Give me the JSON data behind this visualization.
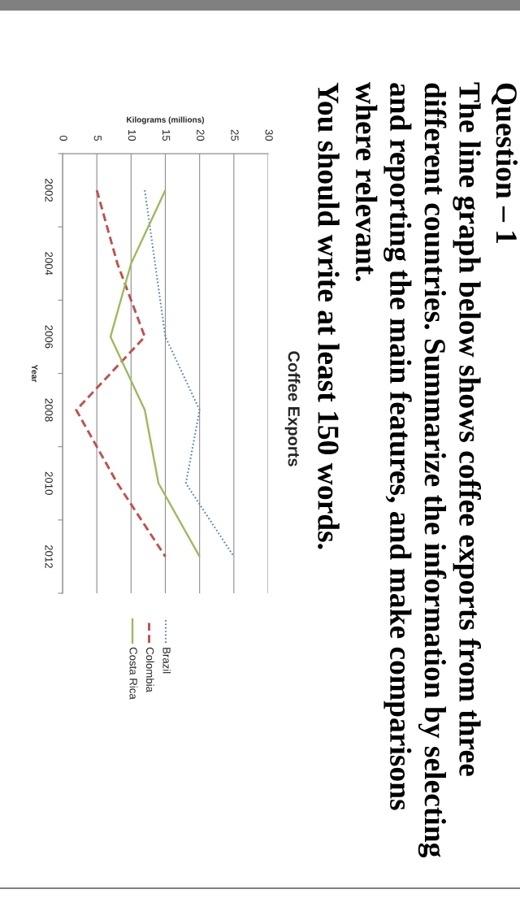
{
  "chart_data": {
    "type": "line",
    "title": "Coffee Exports",
    "xlabel": "Kilograms (millions)",
    "ylabel": "Year",
    "series": [
      {
        "name": "Brazil",
        "color": "#4f81bd",
        "line_style": "dotted",
        "x": [
          12,
          13.5,
          15,
          20,
          18,
          25
        ],
        "values": [
          2002,
          2004,
          2006,
          2008,
          2010,
          2012
        ]
      },
      {
        "name": "Colombia",
        "color": "#c0504d",
        "line_style": "dashed",
        "x": [
          5,
          8,
          12,
          2,
          8,
          15
        ],
        "values": [
          2002,
          2004,
          2006,
          2008,
          2010,
          2012
        ]
      },
      {
        "name": "Costa Rica",
        "color": "#9bbb59",
        "line_style": "solid",
        "x": [
          15,
          10,
          7,
          12,
          14,
          20
        ],
        "values": [
          2002,
          2004,
          2006,
          2008,
          2010,
          2012
        ]
      }
    ],
    "xlim": [
      0,
      30
    ],
    "xticks": [
      0,
      5,
      10,
      15,
      20,
      25,
      30
    ],
    "ylim": [
      2013,
      2001
    ],
    "yticks": [
      {
        "value": 2001,
        "label": null
      },
      2002,
      {
        "value": 2003,
        "label": null
      },
      2004,
      {
        "value": 2005,
        "label": null
      },
      2006,
      {
        "value": 2007,
        "label": null
      },
      2008,
      {
        "value": 2009,
        "label": null
      },
      2010,
      {
        "value": 2011,
        "label": null
      },
      2012,
      {
        "value": 2013,
        "label": null
      }
    ],
    "grid": "x",
    "legend": "bottom",
    "annotations": [
      "Question – 1",
      "The line graph below shows coffee exports from three\ndifferent countries. Summarize the information by selecting\nand reporting the main features, and make comparisons\nwhere relevant.",
      "You should write at least 150 words."
    ]
  }
}
